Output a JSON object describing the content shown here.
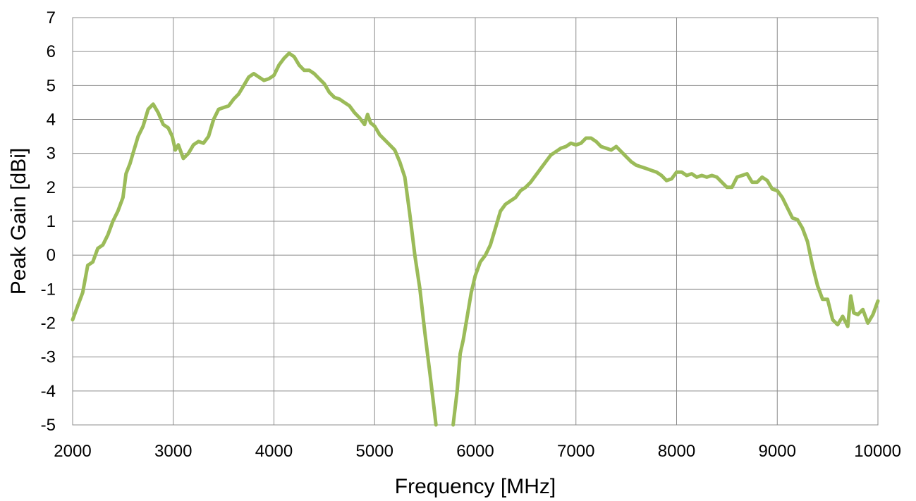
{
  "chart_data": {
    "type": "line",
    "title": "",
    "xlabel": "Frequency [MHz]",
    "ylabel": "Peak Gain [dBi]",
    "xlim": [
      2000,
      10000
    ],
    "ylim": [
      -5,
      7
    ],
    "x_ticks": [
      2000,
      3000,
      4000,
      5000,
      6000,
      7000,
      8000,
      9000,
      10000
    ],
    "y_ticks": [
      -5,
      -4,
      -3,
      -2,
      -1,
      0,
      1,
      2,
      3,
      4,
      5,
      6,
      7
    ],
    "grid": true,
    "legend": "none",
    "series_color": "#9bbb59",
    "series": [
      {
        "points": [
          [
            2000,
            -1.9
          ],
          [
            2050,
            -1.5
          ],
          [
            2100,
            -1.1
          ],
          [
            2150,
            -0.3
          ],
          [
            2200,
            -0.2
          ],
          [
            2250,
            0.2
          ],
          [
            2300,
            0.3
          ],
          [
            2350,
            0.6
          ],
          [
            2400,
            1.0
          ],
          [
            2450,
            1.3
          ],
          [
            2500,
            1.7
          ],
          [
            2530,
            2.4
          ],
          [
            2570,
            2.7
          ],
          [
            2600,
            3.0
          ],
          [
            2650,
            3.5
          ],
          [
            2700,
            3.8
          ],
          [
            2750,
            4.3
          ],
          [
            2800,
            4.45
          ],
          [
            2850,
            4.2
          ],
          [
            2900,
            3.85
          ],
          [
            2950,
            3.75
          ],
          [
            2990,
            3.5
          ],
          [
            3020,
            3.1
          ],
          [
            3050,
            3.25
          ],
          [
            3100,
            2.85
          ],
          [
            3150,
            3.0
          ],
          [
            3200,
            3.25
          ],
          [
            3250,
            3.35
          ],
          [
            3300,
            3.3
          ],
          [
            3350,
            3.5
          ],
          [
            3400,
            4.0
          ],
          [
            3450,
            4.3
          ],
          [
            3500,
            4.35
          ],
          [
            3550,
            4.4
          ],
          [
            3600,
            4.6
          ],
          [
            3650,
            4.75
          ],
          [
            3700,
            5.0
          ],
          [
            3750,
            5.25
          ],
          [
            3800,
            5.35
          ],
          [
            3850,
            5.25
          ],
          [
            3900,
            5.15
          ],
          [
            3950,
            5.2
          ],
          [
            4000,
            5.3
          ],
          [
            4050,
            5.6
          ],
          [
            4100,
            5.8
          ],
          [
            4150,
            5.95
          ],
          [
            4200,
            5.85
          ],
          [
            4250,
            5.6
          ],
          [
            4300,
            5.45
          ],
          [
            4350,
            5.45
          ],
          [
            4400,
            5.35
          ],
          [
            4450,
            5.2
          ],
          [
            4500,
            5.05
          ],
          [
            4550,
            4.8
          ],
          [
            4600,
            4.65
          ],
          [
            4650,
            4.6
          ],
          [
            4700,
            4.5
          ],
          [
            4750,
            4.4
          ],
          [
            4800,
            4.2
          ],
          [
            4850,
            4.05
          ],
          [
            4900,
            3.85
          ],
          [
            4930,
            4.15
          ],
          [
            4960,
            3.9
          ],
          [
            5000,
            3.8
          ],
          [
            5050,
            3.55
          ],
          [
            5100,
            3.4
          ],
          [
            5150,
            3.25
          ],
          [
            5200,
            3.1
          ],
          [
            5250,
            2.75
          ],
          [
            5300,
            2.3
          ],
          [
            5350,
            1.2
          ],
          [
            5400,
            0.0
          ],
          [
            5450,
            -1.0
          ],
          [
            5500,
            -2.3
          ],
          [
            5550,
            -3.5
          ],
          [
            5590,
            -4.5
          ],
          [
            5610,
            -5.0
          ],
          [
            5780,
            -5.0
          ],
          [
            5820,
            -4.0
          ],
          [
            5850,
            -2.9
          ],
          [
            5880,
            -2.5
          ],
          [
            5920,
            -1.8
          ],
          [
            5960,
            -1.1
          ],
          [
            6000,
            -0.6
          ],
          [
            6050,
            -0.2
          ],
          [
            6100,
            0.0
          ],
          [
            6150,
            0.3
          ],
          [
            6200,
            0.8
          ],
          [
            6250,
            1.3
          ],
          [
            6300,
            1.5
          ],
          [
            6350,
            1.6
          ],
          [
            6400,
            1.7
          ],
          [
            6450,
            1.9
          ],
          [
            6500,
            2.0
          ],
          [
            6550,
            2.15
          ],
          [
            6600,
            2.35
          ],
          [
            6650,
            2.55
          ],
          [
            6700,
            2.75
          ],
          [
            6750,
            2.95
          ],
          [
            6800,
            3.05
          ],
          [
            6850,
            3.15
          ],
          [
            6900,
            3.2
          ],
          [
            6950,
            3.3
          ],
          [
            7000,
            3.25
          ],
          [
            7050,
            3.3
          ],
          [
            7100,
            3.45
          ],
          [
            7150,
            3.45
          ],
          [
            7200,
            3.35
          ],
          [
            7250,
            3.2
          ],
          [
            7300,
            3.15
          ],
          [
            7350,
            3.1
          ],
          [
            7400,
            3.2
          ],
          [
            7450,
            3.05
          ],
          [
            7500,
            2.9
          ],
          [
            7550,
            2.75
          ],
          [
            7600,
            2.65
          ],
          [
            7650,
            2.6
          ],
          [
            7700,
            2.55
          ],
          [
            7750,
            2.5
          ],
          [
            7800,
            2.45
          ],
          [
            7850,
            2.35
          ],
          [
            7900,
            2.2
          ],
          [
            7950,
            2.25
          ],
          [
            8000,
            2.45
          ],
          [
            8050,
            2.45
          ],
          [
            8100,
            2.35
          ],
          [
            8150,
            2.4
          ],
          [
            8200,
            2.3
          ],
          [
            8250,
            2.35
          ],
          [
            8300,
            2.3
          ],
          [
            8350,
            2.35
          ],
          [
            8400,
            2.3
          ],
          [
            8450,
            2.15
          ],
          [
            8500,
            2.0
          ],
          [
            8550,
            2.0
          ],
          [
            8600,
            2.3
          ],
          [
            8650,
            2.35
          ],
          [
            8700,
            2.4
          ],
          [
            8750,
            2.15
          ],
          [
            8800,
            2.15
          ],
          [
            8850,
            2.3
          ],
          [
            8900,
            2.2
          ],
          [
            8950,
            1.95
          ],
          [
            9000,
            1.9
          ],
          [
            9050,
            1.7
          ],
          [
            9100,
            1.4
          ],
          [
            9150,
            1.1
          ],
          [
            9200,
            1.05
          ],
          [
            9250,
            0.8
          ],
          [
            9300,
            0.4
          ],
          [
            9350,
            -0.3
          ],
          [
            9400,
            -0.9
          ],
          [
            9450,
            -1.3
          ],
          [
            9500,
            -1.3
          ],
          [
            9550,
            -1.9
          ],
          [
            9600,
            -2.05
          ],
          [
            9650,
            -1.8
          ],
          [
            9700,
            -2.1
          ],
          [
            9730,
            -1.2
          ],
          [
            9760,
            -1.7
          ],
          [
            9800,
            -1.75
          ],
          [
            9850,
            -1.6
          ],
          [
            9900,
            -2.0
          ],
          [
            9950,
            -1.75
          ],
          [
            10000,
            -1.35
          ]
        ]
      }
    ]
  }
}
